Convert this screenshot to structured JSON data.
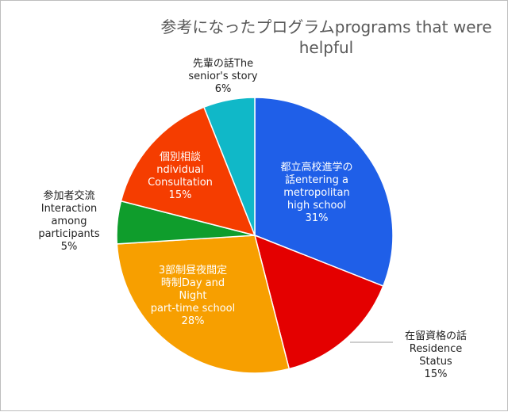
{
  "chart_data": {
    "type": "pie",
    "title": [
      "参考になったプログラムprograms that were",
      "helpful"
    ],
    "slices": [
      {
        "label": [
          "都立高校進学の",
          "話entering a",
          "metropolitan",
          "high school"
        ],
        "value": 31,
        "pct": "31%",
        "color": "#1f5fe8",
        "label_pos": "inside"
      },
      {
        "label": [
          "在留資格の話",
          "Residence",
          "Status"
        ],
        "value": 15,
        "pct": "15%",
        "color": "#e40000",
        "label_pos": "outside-right"
      },
      {
        "label": [
          "3部制昼夜間定",
          "時制Day and",
          "Night",
          "part-time school"
        ],
        "value": 28,
        "pct": "28%",
        "color": "#f79f00",
        "label_pos": "inside"
      },
      {
        "label": [
          "参加者交流",
          "Interaction",
          "among",
          "participants"
        ],
        "value": 5,
        "pct": "5%",
        "color": "#0f9d2c",
        "label_pos": "outside-left"
      },
      {
        "label": [
          "個別相談",
          "ndividual",
          "Consultation"
        ],
        "value": 15,
        "pct": "15%",
        "color": "#f53d00",
        "label_pos": "inside"
      },
      {
        "label": [
          "先輩の話The",
          "senior's story"
        ],
        "value": 6,
        "pct": "6%",
        "color": "#10b8c8",
        "label_pos": "outside-top"
      }
    ],
    "legend": "none"
  }
}
